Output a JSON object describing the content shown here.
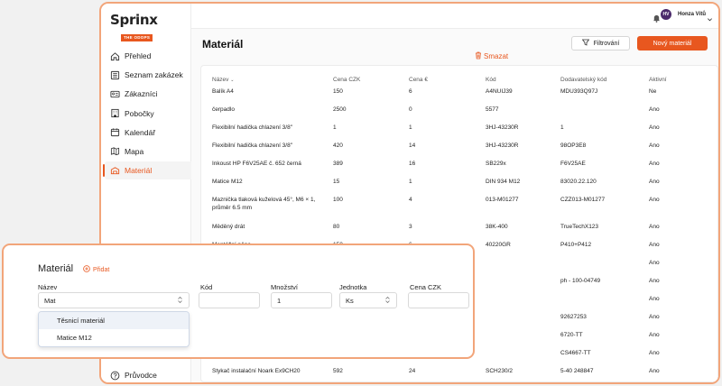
{
  "logo": {
    "name": "Sprinx",
    "sub": "THE ODOPS"
  },
  "nav": [
    {
      "label": "Přehled",
      "icon": "home-icon",
      "active": false
    },
    {
      "label": "Seznam zakázek",
      "icon": "list-icon",
      "active": false
    },
    {
      "label": "Zákazníci",
      "icon": "id-card-icon",
      "active": false
    },
    {
      "label": "Pobočky",
      "icon": "building-icon",
      "active": false
    },
    {
      "label": "Kalendář",
      "icon": "calendar-icon",
      "active": false
    },
    {
      "label": "Mapa",
      "icon": "map-icon",
      "active": false
    },
    {
      "label": "Materiál",
      "icon": "package-icon",
      "active": true
    }
  ],
  "nav_help": "Průvodce",
  "topbar": {
    "initials": "HV",
    "user": "Honza Vítů"
  },
  "page": {
    "title": "Materiál",
    "filter_label": "Filtrování",
    "new_label": "Nový materiál"
  },
  "table": {
    "columns": [
      "Název",
      "Cena CZK",
      "Cena €",
      "Kód",
      "Dodavatelský kód",
      "Aktivní"
    ],
    "rows": [
      [
        "Balík A4",
        "150",
        "6",
        "A4NUIJ39",
        "MDU393Q97J",
        "Ne"
      ],
      [
        "čerpadlo",
        "2500",
        "0",
        "5577",
        "",
        "Ano"
      ],
      [
        "Flexibilní hadička chlazení 3/8\"",
        "1",
        "1",
        "3HJ-43230R",
        "1",
        "Ano"
      ],
      [
        "Flexibilní hadička chlazení 3/8\"",
        "420",
        "14",
        "3HJ-43230R",
        "98OP3E8",
        "Ano"
      ],
      [
        "Inkoust HP F6V25AE č. 652 černá",
        "389",
        "16",
        "SB229x",
        "F6V25AE",
        "Ano"
      ],
      [
        "Matice M12",
        "15",
        "1",
        "DIN 934 M12",
        "83020.22.120",
        "Ano"
      ],
      [
        "Maznička tlaková kuželová 45°, M6 × 1, průměr 6.5 mm",
        "100",
        "4",
        "013-M01277",
        "CZZ013-M01277",
        "Ano"
      ],
      [
        "Měděný drát",
        "80",
        "3",
        "38K-400",
        "TrueTechX123",
        "Ano"
      ],
      [
        "Montážní pěna",
        "150",
        "6",
        "40220GR",
        "P410+P412",
        "Ano"
      ],
      [
        "",
        "",
        "",
        "",
        "",
        "Ano"
      ],
      [
        "",
        "",
        "",
        "",
        "ph - 100-04749",
        "Ano"
      ],
      [
        "",
        "",
        "",
        "",
        "",
        "Ano"
      ],
      [
        "",
        "",
        "",
        "",
        "92627253",
        "Ano"
      ],
      [
        "",
        "",
        "",
        "",
        "6720-TT",
        "Ano"
      ],
      [
        "",
        "",
        "",
        "",
        "CS4667-TT",
        "Ano"
      ],
      [
        "Stykač instalační Noark Ex9CH20",
        "592",
        "24",
        "SCH230/2",
        "5-40 248847",
        "Ano"
      ]
    ]
  },
  "form": {
    "title": "Materiál",
    "add_label": "Přidat",
    "labels": {
      "name": "Název",
      "code": "Kód",
      "qty": "Množství",
      "unit": "Jednotka",
      "price": "Cena CZK"
    },
    "values": {
      "name": "Mat",
      "code": "",
      "qty": "1",
      "unit": "Ks",
      "price": ""
    },
    "delete_label": "Smazat",
    "suggestions": [
      "Těsnicí materiál",
      "Matice M12"
    ]
  }
}
